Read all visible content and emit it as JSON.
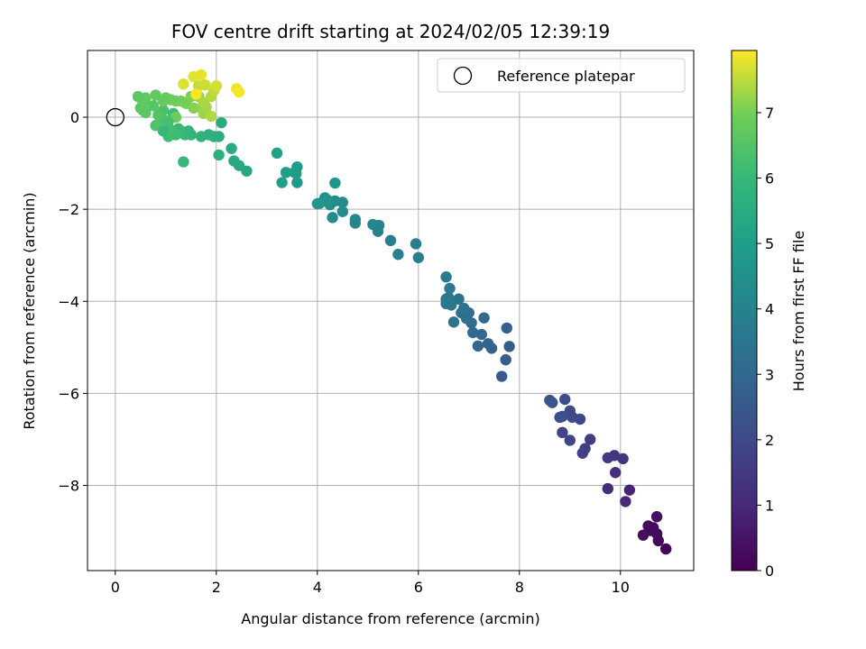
{
  "chart_data": {
    "type": "scatter",
    "title": "FOV centre drift starting at 2024/02/05 12:39:19",
    "xlabel": "Angular distance from reference (arcmin)",
    "ylabel": "Rotation from reference (arcmin)",
    "colorbar_label": "Hours from first FF file",
    "colormap": "viridis",
    "xlim": [
      -0.55,
      11.45
    ],
    "ylim": [
      -9.85,
      1.45
    ],
    "xticks": [
      0,
      2,
      4,
      6,
      8,
      10
    ],
    "yticks": [
      0,
      -2,
      -4,
      -6,
      -8
    ],
    "colorbar_range": [
      0,
      7.95
    ],
    "colorbar_ticks": [
      0,
      1,
      2,
      3,
      4,
      5,
      6,
      7
    ],
    "grid": true,
    "legend": {
      "location": "top-right",
      "entries": [
        "Reference platepar"
      ]
    },
    "reference_point": {
      "x": 0,
      "y": 0
    },
    "points": [
      [
        10.9,
        -9.38,
        0.1
      ],
      [
        10.75,
        -9.2,
        0.15
      ],
      [
        10.72,
        -9.05,
        0.2
      ],
      [
        10.6,
        -8.98,
        0.25
      ],
      [
        10.55,
        -8.88,
        0.3
      ],
      [
        10.45,
        -9.08,
        0.35
      ],
      [
        10.65,
        -8.92,
        0.28
      ],
      [
        10.72,
        -8.68,
        0.4
      ],
      [
        10.18,
        -8.1,
        0.9
      ],
      [
        10.1,
        -8.35,
        1.0
      ],
      [
        9.75,
        -8.07,
        1.1
      ],
      [
        9.9,
        -7.72,
        1.2
      ],
      [
        10.05,
        -7.42,
        1.35
      ],
      [
        9.88,
        -7.35,
        1.4
      ],
      [
        9.75,
        -7.4,
        1.5
      ],
      [
        9.4,
        -7.0,
        1.6
      ],
      [
        9.3,
        -7.2,
        1.7
      ],
      [
        9.25,
        -7.3,
        1.75
      ],
      [
        9.0,
        -7.02,
        1.8
      ],
      [
        8.85,
        -6.85,
        1.85
      ],
      [
        9.2,
        -6.56,
        1.9
      ],
      [
        9.05,
        -6.52,
        2.0
      ],
      [
        9.0,
        -6.38,
        2.05
      ],
      [
        8.9,
        -6.13,
        2.1
      ],
      [
        8.85,
        -6.5,
        2.15
      ],
      [
        8.8,
        -6.52,
        2.2
      ],
      [
        8.65,
        -6.2,
        2.3
      ],
      [
        8.6,
        -6.15,
        2.35
      ],
      [
        7.65,
        -5.63,
        2.5
      ],
      [
        7.8,
        -4.98,
        2.6
      ],
      [
        7.73,
        -5.27,
        2.65
      ],
      [
        7.75,
        -4.58,
        2.7
      ],
      [
        7.45,
        -5.02,
        2.8
      ],
      [
        7.38,
        -4.92,
        2.85
      ],
      [
        7.18,
        -4.97,
        2.9
      ],
      [
        7.25,
        -4.72,
        3.0
      ],
      [
        7.08,
        -4.68,
        3.05
      ],
      [
        7.3,
        -4.36,
        3.1
      ],
      [
        7.05,
        -4.47,
        3.15
      ],
      [
        7.0,
        -4.25,
        3.2
      ],
      [
        6.95,
        -4.37,
        3.25
      ],
      [
        6.85,
        -4.25,
        3.3
      ],
      [
        6.9,
        -4.15,
        3.35
      ],
      [
        6.8,
        -3.95,
        3.4
      ],
      [
        6.7,
        -4.45,
        3.45
      ],
      [
        6.55,
        -4.05,
        3.5
      ],
      [
        6.65,
        -4.08,
        3.55
      ],
      [
        6.6,
        -3.92,
        3.6
      ],
      [
        6.55,
        -3.95,
        3.62
      ],
      [
        6.62,
        -3.72,
        3.65
      ],
      [
        6.55,
        -3.47,
        3.7
      ],
      [
        6.0,
        -3.05,
        3.8
      ],
      [
        5.95,
        -2.75,
        3.85
      ],
      [
        5.6,
        -2.98,
        3.9
      ],
      [
        5.45,
        -2.68,
        3.95
      ],
      [
        5.2,
        -2.48,
        4.0
      ],
      [
        5.22,
        -2.35,
        4.05
      ],
      [
        5.1,
        -2.33,
        4.1
      ],
      [
        4.75,
        -2.3,
        4.15
      ],
      [
        4.75,
        -2.22,
        4.2
      ],
      [
        4.5,
        -2.05,
        4.25
      ],
      [
        4.5,
        -1.85,
        4.3
      ],
      [
        4.3,
        -2.18,
        4.35
      ],
      [
        4.35,
        -1.82,
        4.4
      ],
      [
        4.25,
        -1.9,
        4.45
      ],
      [
        4.15,
        -1.75,
        4.5
      ],
      [
        4.05,
        -1.87,
        4.55
      ],
      [
        4.2,
        -1.8,
        4.6
      ],
      [
        4.0,
        -1.88,
        4.65
      ],
      [
        4.35,
        -1.43,
        4.7
      ],
      [
        3.6,
        -1.42,
        4.8
      ],
      [
        3.58,
        -1.22,
        4.85
      ],
      [
        3.6,
        -1.08,
        4.9
      ],
      [
        3.55,
        -1.2,
        4.95
      ],
      [
        3.38,
        -1.2,
        5.0
      ],
      [
        3.3,
        -1.42,
        5.05
      ],
      [
        3.2,
        -0.78,
        5.1
      ],
      [
        2.6,
        -1.17,
        5.3
      ],
      [
        2.45,
        -1.05,
        5.35
      ],
      [
        2.35,
        -0.95,
        5.4
      ],
      [
        2.3,
        -0.68,
        5.45
      ],
      [
        2.1,
        -0.12,
        5.5
      ],
      [
        2.05,
        -0.42,
        5.55
      ],
      [
        2.05,
        -0.82,
        5.6
      ],
      [
        1.95,
        -0.42,
        5.65
      ],
      [
        1.85,
        -0.38,
        5.7
      ],
      [
        1.7,
        -0.42,
        5.75
      ],
      [
        1.5,
        -0.38,
        5.8
      ],
      [
        1.45,
        -0.3,
        5.85
      ],
      [
        1.38,
        -0.38,
        5.9
      ],
      [
        1.3,
        -0.3,
        5.95
      ],
      [
        1.35,
        -0.97,
        6.0
      ],
      [
        1.25,
        -0.25,
        6.05
      ],
      [
        1.2,
        -0.38,
        6.1
      ],
      [
        1.1,
        -0.28,
        6.15
      ],
      [
        1.05,
        -0.42,
        6.2
      ],
      [
        1.05,
        -0.22,
        6.25
      ],
      [
        1.0,
        -0.08,
        6.3
      ],
      [
        0.95,
        0.15,
        6.35
      ],
      [
        0.9,
        -0.08,
        6.4
      ],
      [
        0.8,
        -0.18,
        6.45
      ],
      [
        0.85,
        0.05,
        6.5
      ],
      [
        0.75,
        0.25,
        6.55
      ],
      [
        0.6,
        0.1,
        6.6
      ],
      [
        0.55,
        0.15,
        6.62
      ],
      [
        0.5,
        0.2,
        6.65
      ],
      [
        0.55,
        0.32,
        6.7
      ],
      [
        0.6,
        0.42,
        6.72
      ],
      [
        0.8,
        0.48,
        6.75
      ],
      [
        0.95,
        0.35,
        6.8
      ],
      [
        1.0,
        0.42,
        6.82
      ],
      [
        1.1,
        0.38,
        6.85
      ],
      [
        1.2,
        0.35,
        6.9
      ],
      [
        1.3,
        0.35,
        6.95
      ],
      [
        1.4,
        0.3,
        7.0
      ],
      [
        1.5,
        0.45,
        7.05
      ],
      [
        1.55,
        0.2,
        7.1
      ],
      [
        1.65,
        0.45,
        7.15
      ],
      [
        1.7,
        0.2,
        7.2
      ],
      [
        1.75,
        0.08,
        7.25
      ],
      [
        1.8,
        0.22,
        7.3
      ],
      [
        1.75,
        0.32,
        7.35
      ],
      [
        1.9,
        0.02,
        7.4
      ],
      [
        1.9,
        0.45,
        7.45
      ],
      [
        1.95,
        0.58,
        7.5
      ],
      [
        1.65,
        0.68,
        7.55
      ],
      [
        1.78,
        0.7,
        7.6
      ],
      [
        2.0,
        0.68,
        7.65
      ],
      [
        1.35,
        0.72,
        7.7
      ],
      [
        1.55,
        0.88,
        7.75
      ],
      [
        1.7,
        0.92,
        7.8
      ],
      [
        2.4,
        0.62,
        7.85
      ],
      [
        2.45,
        0.55,
        7.9
      ],
      [
        1.6,
        0.5,
        7.92
      ],
      [
        0.45,
        0.45,
        6.6
      ],
      [
        1.15,
        0.08,
        6.1
      ],
      [
        1.2,
        0.0,
        6.9
      ],
      [
        1.05,
        -0.1,
        6.3
      ],
      [
        0.95,
        -0.3,
        6.0
      ]
    ]
  }
}
